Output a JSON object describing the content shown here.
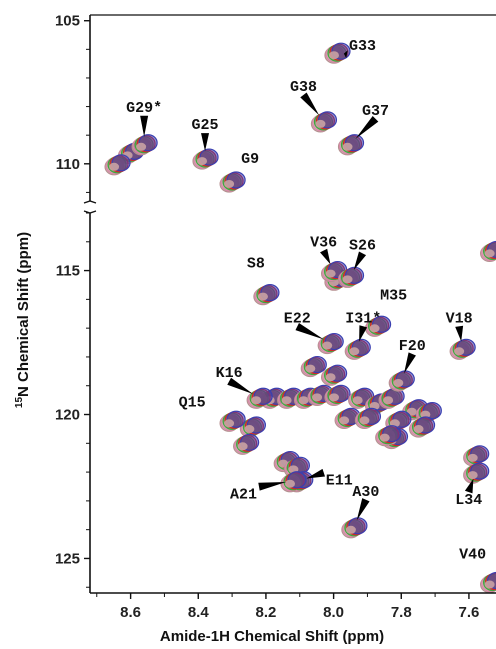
{
  "chart_data": {
    "type": "scatter",
    "title": "",
    "xlabel": "Amide-1H Chemical Shift (ppm)",
    "ylabel_parts": {
      "superscript": "15",
      "main": "N Chemical Shift (ppm)"
    },
    "x_reversed": true,
    "xlim": [
      8.72,
      7.52
    ],
    "ylim_upper": [
      104.8,
      111.3
    ],
    "ylim_lower": [
      113.0,
      126.2
    ],
    "axis_break": "y between 111.3 and 113.0",
    "xticks": [
      8.6,
      8.4,
      8.2,
      8.0,
      7.8,
      7.6
    ],
    "xtick_labels": [
      "8.6",
      "8.4",
      "8.2",
      "8.0",
      "7.8",
      "7.6"
    ],
    "yticks": [
      105,
      110,
      115,
      120,
      125
    ],
    "ytick_labels": [
      "105",
      "110",
      "115",
      "120",
      "125"
    ],
    "series_colors": [
      "#3a3fb0",
      "#d02828",
      "#3da83d",
      "#d88aa8",
      "#b59090"
    ],
    "peaks": [
      {
        "label": "G33",
        "x": 7.99,
        "y": 106.1
      },
      {
        "label": "G38",
        "x": 8.03,
        "y": 108.5
      },
      {
        "label": "G37",
        "x": 7.95,
        "y": 109.3
      },
      {
        "label": "G29*",
        "x": 8.56,
        "y": 109.3
      },
      {
        "label": "G25",
        "x": 8.38,
        "y": 109.8
      },
      {
        "label": "G9",
        "x": 8.3,
        "y": 110.6
      },
      {
        "label": "V36",
        "x": 8.0,
        "y": 115.0
      },
      {
        "label": "S26",
        "x": 7.95,
        "y": 115.2
      },
      {
        "label": "S8",
        "x": 8.2,
        "y": 115.8
      },
      {
        "label": "M35",
        "x": 7.87,
        "y": 116.9
      },
      {
        "label": "I31*",
        "x": 7.93,
        "y": 117.7
      },
      {
        "label": "E22",
        "x": 8.01,
        "y": 117.5
      },
      {
        "label": "V18",
        "x": 7.62,
        "y": 117.7
      },
      {
        "label": "F20",
        "x": 7.8,
        "y": 118.8
      },
      {
        "label": "K16",
        "x": 8.22,
        "y": 119.4
      },
      {
        "label": "Q15",
        "x": 8.3,
        "y": 120.2
      },
      {
        "label": "E11",
        "x": 8.1,
        "y": 122.3
      },
      {
        "label": "A21",
        "x": 8.12,
        "y": 122.3
      },
      {
        "label": "L34",
        "x": 7.58,
        "y": 122.0
      },
      {
        "label": "A30",
        "x": 7.94,
        "y": 123.9
      },
      {
        "label": "V40",
        "x": 7.53,
        "y": 125.8
      }
    ],
    "unlabeled_peaks": [
      {
        "x": 8.6,
        "y": 109.6
      },
      {
        "x": 8.64,
        "y": 110.0
      },
      {
        "x": 7.53,
        "y": 114.3
      },
      {
        "x": 7.58,
        "y": 121.4
      },
      {
        "x": 8.18,
        "y": 119.4
      },
      {
        "x": 8.13,
        "y": 119.4
      },
      {
        "x": 8.08,
        "y": 119.4
      },
      {
        "x": 8.04,
        "y": 119.3
      },
      {
        "x": 7.99,
        "y": 119.3
      },
      {
        "x": 7.92,
        "y": 119.4
      },
      {
        "x": 7.87,
        "y": 119.6
      },
      {
        "x": 7.83,
        "y": 119.4
      },
      {
        "x": 7.76,
        "y": 119.8
      },
      {
        "x": 7.72,
        "y": 119.9
      },
      {
        "x": 7.96,
        "y": 120.1
      },
      {
        "x": 7.9,
        "y": 120.1
      },
      {
        "x": 7.81,
        "y": 120.2
      },
      {
        "x": 7.74,
        "y": 120.4
      },
      {
        "x": 8.24,
        "y": 120.4
      },
      {
        "x": 8.26,
        "y": 121.0
      },
      {
        "x": 8.14,
        "y": 121.6
      },
      {
        "x": 8.11,
        "y": 121.8
      },
      {
        "x": 8.06,
        "y": 118.3
      },
      {
        "x": 8.0,
        "y": 118.6
      },
      {
        "x": 7.82,
        "y": 120.8
      },
      {
        "x": 7.99,
        "y": 115.3
      },
      {
        "x": 7.84,
        "y": 120.7
      }
    ]
  }
}
